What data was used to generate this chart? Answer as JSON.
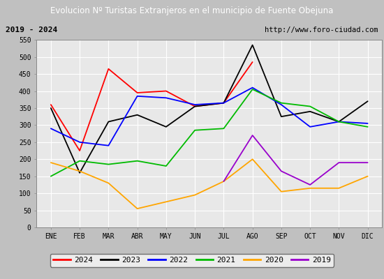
{
  "title": "Evolucion Nº Turistas Extranjeros en el municipio de Fuente Obejuna",
  "subtitle_left": "2019 - 2024",
  "subtitle_right": "http://www.foro-ciudad.com",
  "months": [
    "ENE",
    "FEB",
    "MAR",
    "ABR",
    "MAY",
    "JUN",
    "JUL",
    "AGO",
    "SEP",
    "OCT",
    "NOV",
    "DIC"
  ],
  "ylim": [
    0,
    550
  ],
  "yticks": [
    0,
    50,
    100,
    150,
    200,
    250,
    300,
    350,
    400,
    450,
    500,
    550
  ],
  "series": {
    "2024": {
      "color": "#ff0000",
      "values": [
        360,
        225,
        465,
        395,
        400,
        355,
        365,
        485,
        null,
        null,
        null,
        null
      ]
    },
    "2023": {
      "color": "#000000",
      "values": [
        350,
        160,
        310,
        330,
        295,
        355,
        365,
        535,
        325,
        340,
        310,
        370
      ]
    },
    "2022": {
      "color": "#0000ff",
      "values": [
        290,
        250,
        240,
        385,
        380,
        360,
        365,
        410,
        360,
        295,
        310,
        305
      ]
    },
    "2021": {
      "color": "#00bb00",
      "values": [
        150,
        195,
        185,
        195,
        180,
        285,
        290,
        405,
        365,
        355,
        310,
        295
      ]
    },
    "2020": {
      "color": "#ffa500",
      "values": [
        190,
        165,
        130,
        55,
        75,
        95,
        135,
        200,
        105,
        115,
        115,
        150
      ]
    },
    "2019": {
      "color": "#9900cc",
      "values": [
        null,
        null,
        null,
        null,
        null,
        null,
        135,
        270,
        165,
        125,
        190,
        190
      ]
    }
  },
  "title_bg_color": "#4472c4",
  "title_text_color": "#ffffff",
  "subtitle_bg_color": "#f0f0f0",
  "plot_bg_color": "#e8e8e8",
  "grid_color": "#ffffff",
  "outer_bg_color": "#c0c0c0",
  "border_color": "#888888",
  "fig_width": 5.5,
  "fig_height": 4.0,
  "fig_dpi": 100
}
